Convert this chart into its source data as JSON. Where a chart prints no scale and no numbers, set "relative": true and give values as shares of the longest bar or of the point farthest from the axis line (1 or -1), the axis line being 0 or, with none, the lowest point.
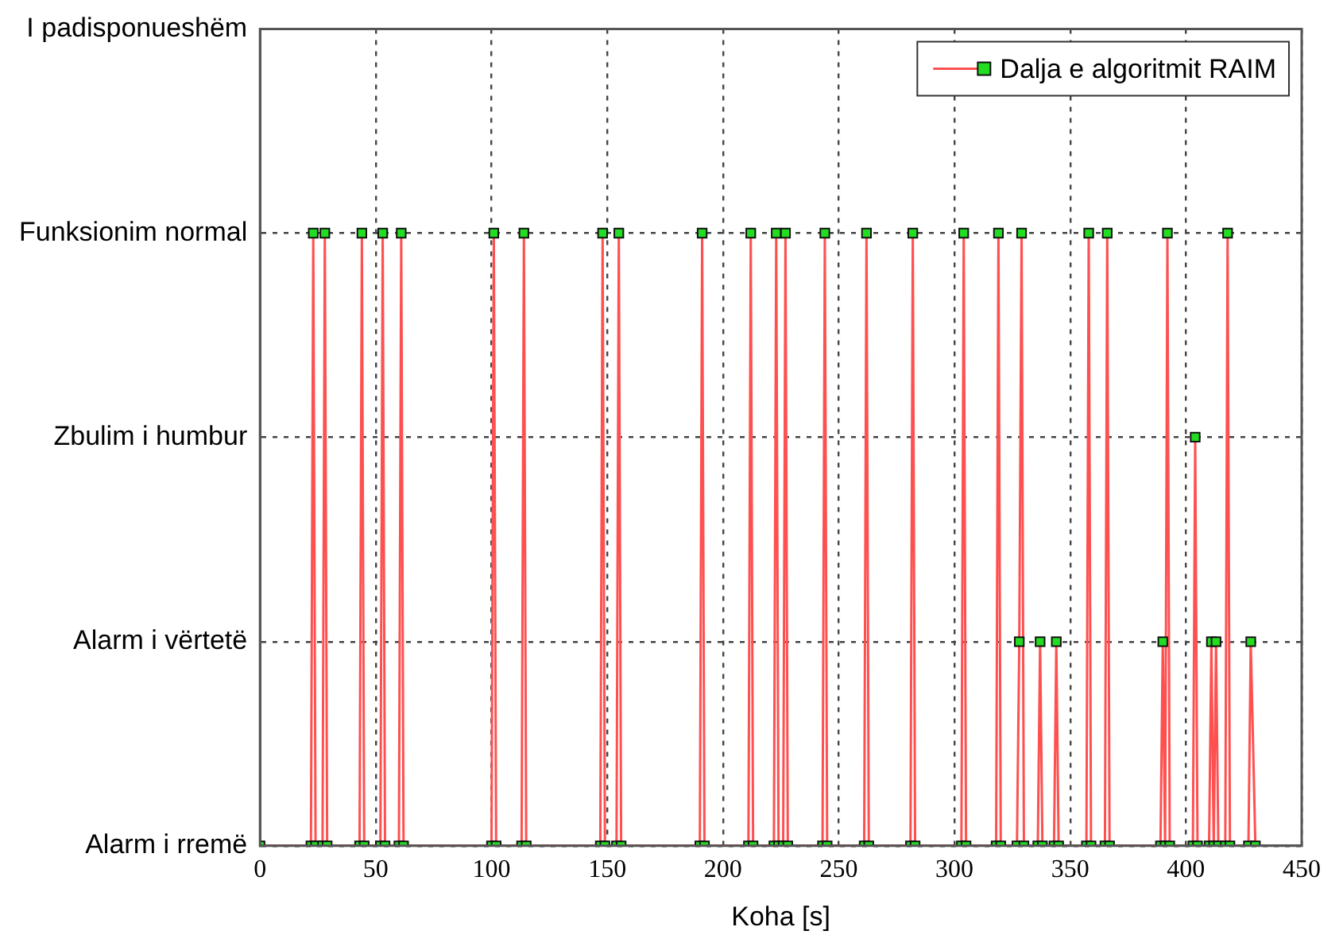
{
  "chart_data": {
    "type": "line",
    "xlabel": "Koha [s]",
    "relative": true,
    "xlim": [
      0,
      450
    ],
    "xticks": [
      0,
      50,
      100,
      150,
      200,
      250,
      300,
      350,
      400,
      450
    ],
    "y_categories": [
      "I padisponueshëm",
      "Funksionim normal",
      "Zbulim i humbur",
      "Alarm i vërtetë",
      "Alarm i rremë"
    ],
    "grid": true,
    "legend": "top right",
    "marker": "square",
    "line_style": "solid",
    "series": [
      {
        "name": "Dalja e algoritmit RAIM",
        "color": "#ff5050",
        "x": [
          0,
          22,
          23,
          24,
          27,
          28,
          29,
          43,
          44,
          45,
          52,
          53,
          54,
          60,
          61,
          62,
          100,
          101,
          102,
          113,
          114,
          115,
          147,
          148,
          149,
          154,
          155,
          156,
          190,
          191,
          192,
          211,
          212,
          213,
          222,
          223,
          224,
          226,
          227,
          228,
          243,
          244,
          245,
          261,
          262,
          263,
          281,
          282,
          283,
          303,
          304,
          305,
          318,
          319,
          320,
          327,
          328,
          329,
          330,
          336,
          337,
          338,
          343,
          344,
          345,
          357,
          358,
          359,
          365,
          366,
          367,
          389,
          390,
          391,
          392,
          393,
          403,
          404,
          405,
          410,
          411,
          412,
          413,
          414,
          417,
          418,
          419,
          427,
          428,
          430
        ],
        "values": [
          0,
          0,
          1,
          0,
          0,
          1,
          0,
          0,
          1,
          0,
          0,
          1,
          0,
          0,
          1,
          0,
          0,
          1,
          0,
          0,
          1,
          0,
          0,
          1,
          0,
          0,
          1,
          0,
          0,
          1,
          0,
          0,
          1,
          0,
          0,
          1,
          0,
          0,
          1,
          0,
          0,
          1,
          0,
          0,
          1,
          0,
          0,
          1,
          0,
          0,
          1,
          0,
          0,
          1,
          0,
          0,
          0.333,
          1,
          0,
          0,
          0.333,
          0,
          0,
          0.333,
          0,
          0,
          1,
          0,
          0,
          1,
          0,
          0,
          0.333,
          0,
          1,
          0,
          0,
          0.667,
          0,
          0,
          0.333,
          0,
          0.333,
          0,
          0,
          1,
          0,
          0,
          0.333,
          0
        ]
      }
    ]
  }
}
